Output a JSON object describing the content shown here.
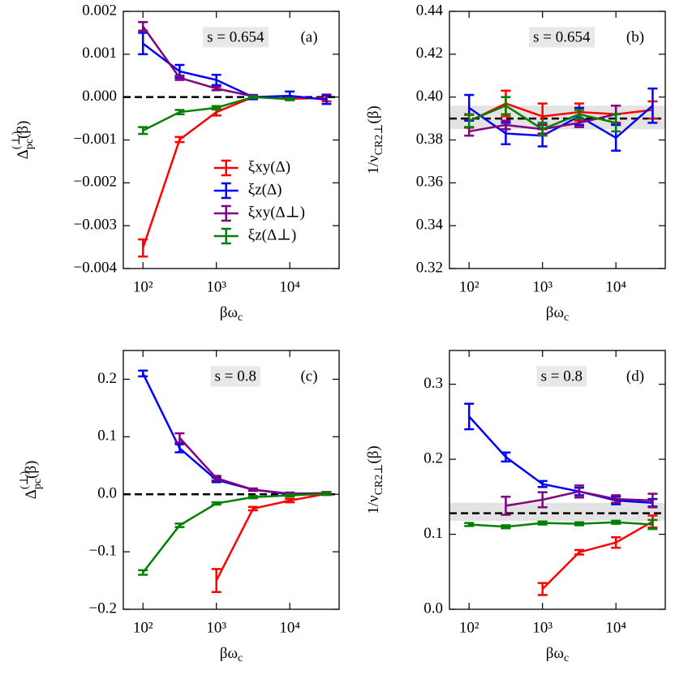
{
  "chart_data": [
    {
      "type": "line",
      "xlabel": {
        "base": "βω",
        "sub": "c"
      },
      "ylabel": {
        "base": "Δ",
        "sup": "(⊥)",
        "sub": "pc",
        "tail": "(β)"
      },
      "x": [
        100,
        316,
        1000,
        3162,
        10000,
        31623
      ],
      "xlog": true,
      "xlim": [
        54,
        47000
      ],
      "xticks": [
        {
          "value": 100,
          "label": "10²"
        },
        {
          "value": 1000,
          "label": "10³"
        },
        {
          "value": 10000,
          "label": "10⁴"
        }
      ],
      "ylim": [
        -0.004,
        0.002
      ],
      "yticks": [
        {
          "value": -0.004,
          "label": "−0.004"
        },
        {
          "value": -0.003,
          "label": "−0.003"
        },
        {
          "value": -0.002,
          "label": "−0.002"
        },
        {
          "value": -0.001,
          "label": "−0.001"
        },
        {
          "value": 0,
          "label": "0.000"
        },
        0.001,
        0.002
      ],
      "reference": 0,
      "annotations": [
        "s = 0.654",
        "(a)"
      ],
      "legend": "lower right",
      "series": [
        {
          "name": "ξxy(Δ)",
          "color": "#ff0000",
          "values": [
            -0.00352,
            -0.00099,
            -0.00035,
            0.0,
            -4e-05,
            -2e-05
          ],
          "errors": [
            0.0002,
            6e-05,
            8e-05,
            4e-05,
            3e-05,
            8e-05
          ]
        },
        {
          "name": "ξz(Δ)",
          "color": "#0000ff",
          "values": [
            0.00125,
            0.0006,
            0.0004,
            0.0,
            3e-05,
            -6e-05
          ],
          "errors": [
            0.00025,
            0.00015,
            0.00012,
            5e-05,
            0.0001,
            0.0001
          ]
        },
        {
          "name": "ξxy(Δ⊥)",
          "color": "#800080",
          "values": [
            0.00165,
            0.00045,
            0.0002,
            2e-05,
            null,
            null
          ],
          "errors": [
            0.0001,
            5e-05,
            4e-05,
            2e-05,
            null,
            null
          ]
        },
        {
          "name": "ξz(Δ⊥)",
          "color": "#008000",
          "values": [
            -0.00078,
            -0.00035,
            -0.00025,
            0.0,
            -5e-05,
            null
          ],
          "errors": [
            8e-05,
            5e-05,
            4e-05,
            2e-05,
            2e-05,
            null
          ]
        }
      ]
    },
    {
      "type": "line",
      "xlabel": {
        "base": "βω",
        "sub": "c"
      },
      "ylabel": {
        "base": "1/ν",
        "sub": "CR2⊥",
        "tail": "(β)"
      },
      "x": [
        100,
        316,
        1000,
        3162,
        10000,
        31623
      ],
      "xlog": true,
      "xlim": [
        54,
        47000
      ],
      "xticks": [
        {
          "value": 100,
          "label": "10²"
        },
        {
          "value": 1000,
          "label": "10³"
        },
        {
          "value": 10000,
          "label": "10⁴"
        }
      ],
      "ylim": [
        0.32,
        0.44
      ],
      "yticks": [
        0.32,
        0.34,
        0.36,
        0.38,
        {
          "value": 0.4,
          "label": "0.40"
        },
        0.42,
        0.44
      ],
      "reference": 0.39,
      "band": [
        0.385,
        0.396
      ],
      "annotations": [
        "s = 0.654",
        "(b)"
      ],
      "series": [
        {
          "color": "#ff0000",
          "values": [
            0.3887,
            0.397,
            0.391,
            0.393,
            0.392,
            0.394
          ],
          "errors": [
            0.003,
            0.006,
            0.006,
            0.004,
            0.004,
            0.004
          ]
        },
        {
          "color": "#0000ff",
          "values": [
            0.395,
            0.383,
            0.382,
            0.391,
            0.381,
            0.396
          ],
          "errors": [
            0.006,
            0.005,
            0.005,
            0.004,
            0.006,
            0.008
          ]
        },
        {
          "color": "#800080",
          "values": [
            0.384,
            0.387,
            0.385,
            0.388,
            0.392,
            null
          ],
          "errors": [
            0.002,
            0.002,
            0.002,
            0.002,
            0.004,
            null
          ]
        },
        {
          "color": "#008000",
          "values": [
            0.389,
            0.396,
            0.385,
            0.392,
            0.388,
            null
          ],
          "errors": [
            0.003,
            0.004,
            0.003,
            0.002,
            0.004,
            null
          ]
        }
      ]
    },
    {
      "type": "line",
      "xlabel": {
        "base": "βω",
        "sub": "c"
      },
      "ylabel": {
        "base": "Δ",
        "sup": "(⊥)",
        "sub": "pc",
        "tail": "(β)"
      },
      "x": [
        100,
        316,
        1000,
        3162,
        10000,
        31623
      ],
      "xlog": true,
      "xlim": [
        54,
        47000
      ],
      "xticks": [
        {
          "value": 100,
          "label": "10²"
        },
        {
          "value": 1000,
          "label": "10³"
        },
        {
          "value": 10000,
          "label": "10⁴"
        }
      ],
      "ylim": [
        -0.2,
        0.25
      ],
      "yticks": [
        {
          "value": -0.2,
          "label": "−0.2"
        },
        {
          "value": -0.1,
          "label": "−0.1"
        },
        {
          "value": 0,
          "label": "0.0"
        },
        0.1,
        0.2
      ],
      "reference": 0,
      "annotations": [
        "s = 0.8",
        "(c)"
      ],
      "series": [
        {
          "color": "#ff0000",
          "values": [
            null,
            null,
            -0.15,
            -0.025,
            -0.011,
            0.001
          ],
          "errors": [
            null,
            null,
            0.02,
            0.003,
            0.003,
            0.002
          ]
        },
        {
          "color": "#0000ff",
          "values": [
            0.21,
            0.08,
            0.025,
            0.008,
            0.0,
            0.001
          ],
          "errors": [
            0.005,
            0.007,
            0.004,
            0.002,
            0.002,
            0.002
          ]
        },
        {
          "color": "#800080",
          "values": [
            null,
            0.098,
            0.028,
            0.008,
            0.001,
            0.002
          ],
          "errors": [
            null,
            0.008,
            0.004,
            0.002,
            0.002,
            0.002
          ]
        },
        {
          "color": "#008000",
          "values": [
            -0.136,
            -0.054,
            -0.016,
            -0.005,
            -0.002,
            0.001
          ],
          "errors": [
            0.004,
            0.003,
            0.002,
            0.002,
            0.002,
            0.002
          ]
        }
      ]
    },
    {
      "type": "line",
      "xlabel": {
        "base": "βω",
        "sub": "c"
      },
      "ylabel": {
        "base": "1/ν",
        "sub": "CR2⊥",
        "tail": "(β)"
      },
      "x": [
        100,
        316,
        1000,
        3162,
        10000,
        31623
      ],
      "xlog": true,
      "xlim": [
        54,
        47000
      ],
      "xticks": [
        {
          "value": 100,
          "label": "10²"
        },
        {
          "value": 1000,
          "label": "10³"
        },
        {
          "value": 10000,
          "label": "10⁴"
        }
      ],
      "ylim": [
        0,
        0.345
      ],
      "yticks": [
        {
          "value": 0,
          "label": "0.0"
        },
        0.1,
        0.2,
        0.3
      ],
      "reference": 0.128,
      "band": [
        0.118,
        0.142
      ],
      "annotations": [
        "s = 0.8",
        "(d)"
      ],
      "series": [
        {
          "color": "#ff0000",
          "values": [
            null,
            null,
            0.027,
            0.076,
            0.089,
            0.117
          ],
          "errors": [
            null,
            null,
            0.008,
            0.003,
            0.007,
            0.008
          ]
        },
        {
          "color": "#0000ff",
          "values": [
            0.257,
            0.203,
            0.167,
            0.157,
            0.145,
            0.142
          ],
          "errors": [
            0.017,
            0.006,
            0.004,
            0.005,
            0.005,
            0.005
          ]
        },
        {
          "color": "#800080",
          "values": [
            null,
            0.138,
            0.146,
            0.157,
            0.147,
            0.145
          ],
          "errors": [
            null,
            0.012,
            0.01,
            0.008,
            0.005,
            0.009
          ]
        },
        {
          "color": "#008000",
          "values": [
            0.113,
            0.11,
            0.115,
            0.114,
            0.116,
            0.113
          ],
          "errors": [
            0.002,
            0.002,
            0.002,
            0.002,
            0.002,
            0.006
          ]
        }
      ]
    }
  ]
}
